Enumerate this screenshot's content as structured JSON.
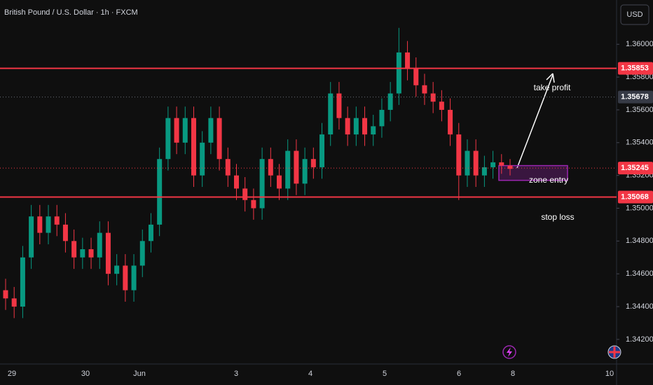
{
  "chart_data": {
    "type": "candlestick",
    "title": "British Pound / U.S. Dollar · 1h · FXCM",
    "currency": "USD",
    "categories": [
      "29",
      "30",
      "Jun",
      "3",
      "4",
      "5",
      "6",
      "8",
      "10"
    ],
    "ylim": [
      1.3405,
      1.3627
    ],
    "yticks": [
      {
        "value": 1.36,
        "label": "1.36000"
      },
      {
        "value": 1.358,
        "label": "1.35800"
      },
      {
        "value": 1.356,
        "label": "1.35600"
      },
      {
        "value": 1.354,
        "label": "1.35400"
      },
      {
        "value": 1.352,
        "label": "1.35200"
      },
      {
        "value": 1.35,
        "label": "1.35000"
      },
      {
        "value": 1.348,
        "label": "1.34800"
      },
      {
        "value": 1.346,
        "label": "1.34600"
      },
      {
        "value": 1.344,
        "label": "1.34400"
      },
      {
        "value": 1.342,
        "label": "1.34200"
      }
    ],
    "grid": false,
    "up_color": "#089981",
    "down_color": "#f23645",
    "open": [
      1.345,
      1.3445,
      1.344,
      1.347,
      1.3495,
      1.3485,
      1.3495,
      1.349,
      1.348,
      1.347,
      1.3475,
      1.347,
      1.3485,
      1.346,
      1.3465,
      1.345,
      1.3465,
      1.348,
      1.349,
      1.353,
      1.3555,
      1.354,
      1.3555,
      1.352,
      1.354,
      1.3555,
      1.353,
      1.352,
      1.3512,
      1.3505,
      1.35,
      1.353,
      1.352,
      1.3512,
      1.3535,
      1.3515,
      1.353,
      1.3525,
      1.3545,
      1.357,
      1.3555,
      1.3545,
      1.3555,
      1.3545,
      1.355,
      1.356,
      1.357,
      1.3595,
      1.3585,
      1.3575,
      1.357,
      1.3565,
      1.356,
      1.3545,
      1.352,
      1.3535,
      1.352,
      1.3525,
      1.3528,
      1.3526
    ],
    "high": [
      1.3457,
      1.3452,
      1.3477,
      1.3502,
      1.3502,
      1.3502,
      1.3502,
      1.3497,
      1.3487,
      1.3482,
      1.3482,
      1.3492,
      1.3492,
      1.3472,
      1.3472,
      1.3472,
      1.3487,
      1.3497,
      1.3537,
      1.3562,
      1.3562,
      1.3562,
      1.3562,
      1.3547,
      1.3562,
      1.3562,
      1.3537,
      1.3527,
      1.3519,
      1.3512,
      1.3537,
      1.3537,
      1.3527,
      1.3542,
      1.3542,
      1.3537,
      1.3537,
      1.3552,
      1.3577,
      1.3577,
      1.3562,
      1.3562,
      1.3562,
      1.3557,
      1.3567,
      1.3577,
      1.361,
      1.3602,
      1.3592,
      1.3582,
      1.3577,
      1.3572,
      1.3567,
      1.3552,
      1.3542,
      1.3542,
      1.3532,
      1.3535,
      1.3533,
      1.353
    ],
    "low": [
      1.3438,
      1.3433,
      1.3433,
      1.3463,
      1.3478,
      1.3478,
      1.3483,
      1.3473,
      1.3463,
      1.3463,
      1.3463,
      1.3463,
      1.3453,
      1.3453,
      1.3443,
      1.3443,
      1.3458,
      1.3473,
      1.3483,
      1.3523,
      1.3533,
      1.3533,
      1.3513,
      1.3513,
      1.3533,
      1.3523,
      1.3513,
      1.3505,
      1.3498,
      1.3493,
      1.3493,
      1.3513,
      1.3505,
      1.3505,
      1.3508,
      1.3508,
      1.3518,
      1.3518,
      1.3538,
      1.3548,
      1.3538,
      1.3538,
      1.3538,
      1.3538,
      1.3543,
      1.3553,
      1.3563,
      1.3578,
      1.3568,
      1.3563,
      1.3558,
      1.3553,
      1.3538,
      1.3505,
      1.3513,
      1.3513,
      1.3513,
      1.3518,
      1.3521,
      1.352
    ],
    "close": [
      1.3445,
      1.344,
      1.347,
      1.3495,
      1.3485,
      1.3495,
      1.349,
      1.348,
      1.347,
      1.3475,
      1.347,
      1.3485,
      1.346,
      1.3465,
      1.345,
      1.3465,
      1.348,
      1.349,
      1.353,
      1.3555,
      1.354,
      1.3555,
      1.352,
      1.354,
      1.3555,
      1.353,
      1.352,
      1.3512,
      1.3505,
      1.35,
      1.353,
      1.352,
      1.3512,
      1.3535,
      1.3515,
      1.353,
      1.3525,
      1.3545,
      1.357,
      1.3555,
      1.3545,
      1.3555,
      1.3545,
      1.355,
      1.356,
      1.357,
      1.3595,
      1.3585,
      1.3575,
      1.357,
      1.3565,
      1.356,
      1.3545,
      1.352,
      1.3535,
      1.352,
      1.3525,
      1.3528,
      1.3526,
      1.3524
    ],
    "levels": [
      {
        "value": 1.35853,
        "color": "#f23645",
        "style": "solid"
      },
      {
        "value": 1.35678,
        "color": "#6a6d78",
        "style": "dotted"
      },
      {
        "value": 1.35245,
        "color": "#f23645",
        "style": "dotted"
      },
      {
        "value": 1.35068,
        "color": "#f23645",
        "style": "solid"
      }
    ],
    "zone": {
      "top": 1.3526,
      "bottom": 1.3517,
      "color": "#9c27b0"
    },
    "annotations": [
      "take profit",
      "zone entry",
      "stop loss"
    ]
  }
}
